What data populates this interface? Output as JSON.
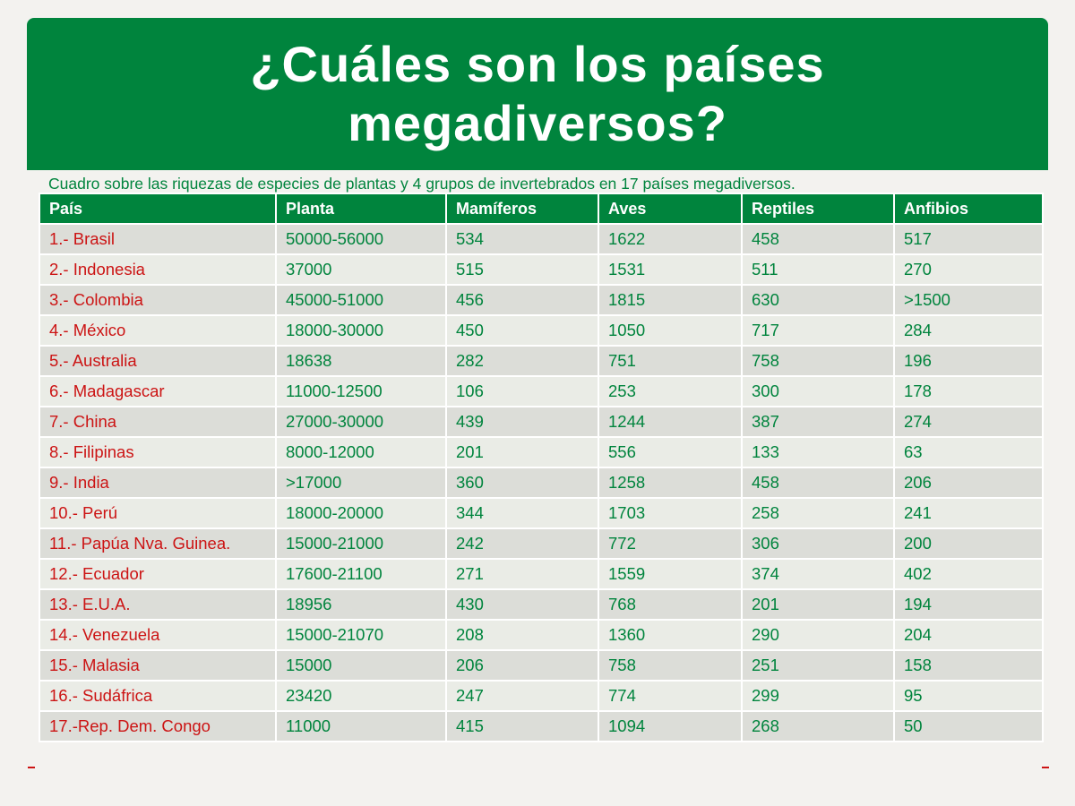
{
  "title": {
    "line1": "¿Cuáles son los países",
    "line2": "megadiversos?"
  },
  "subtitle": "Cuadro sobre las riquezas de especies de plantas y 4 grupos de invertebrados en 17 países megadiversos.",
  "table": {
    "headers": [
      "País",
      "Planta",
      "Mamíferos",
      "Aves",
      "Reptiles",
      "Anfibios"
    ],
    "rows": [
      [
        "1.- Brasil",
        "50000-56000",
        "534",
        "1622",
        "458",
        "517"
      ],
      [
        "2.- Indonesia",
        "37000",
        "515",
        "1531",
        "511",
        "270"
      ],
      [
        "3.- Colombia",
        "45000-51000",
        "456",
        "1815",
        "630",
        ">1500"
      ],
      [
        "4.- México",
        "18000-30000",
        "450",
        "1050",
        "717",
        "284"
      ],
      [
        "5.- Australia",
        "18638",
        "282",
        "751",
        "758",
        "196"
      ],
      [
        "6.- Madagascar",
        "11000-12500",
        "106",
        "253",
        "300",
        "178"
      ],
      [
        "7.- China",
        "27000-30000",
        "439",
        "1244",
        "387",
        "274"
      ],
      [
        "8.- Filipinas",
        "8000-12000",
        "201",
        "556",
        "133",
        "63"
      ],
      [
        "9.- India",
        ">17000",
        "360",
        "1258",
        "458",
        "206"
      ],
      [
        "10.- Perú",
        "18000-20000",
        "344",
        "1703",
        "258",
        "241"
      ],
      [
        "11.- Papúa Nva. Guinea.",
        "15000-21000",
        "242",
        "772",
        "306",
        "200"
      ],
      [
        "12.- Ecuador",
        "17600-21100",
        "271",
        "1559",
        "374",
        "402"
      ],
      [
        "13.- E.U.A.",
        "18956",
        "430",
        "768",
        "201",
        "194"
      ],
      [
        "14.- Venezuela",
        "15000-21070",
        "208",
        "1360",
        "290",
        "204"
      ],
      [
        "15.- Malasia",
        "15000",
        "206",
        "758",
        "251",
        "158"
      ],
      [
        "16.- Sudáfrica",
        "23420",
        "247",
        "774",
        "299",
        "95"
      ],
      [
        "17.-Rep. Dem. Congo",
        "11000",
        "415",
        "1094",
        "268",
        "50"
      ]
    ]
  },
  "colors": {
    "green": "#00843d",
    "red": "#cc1414"
  }
}
